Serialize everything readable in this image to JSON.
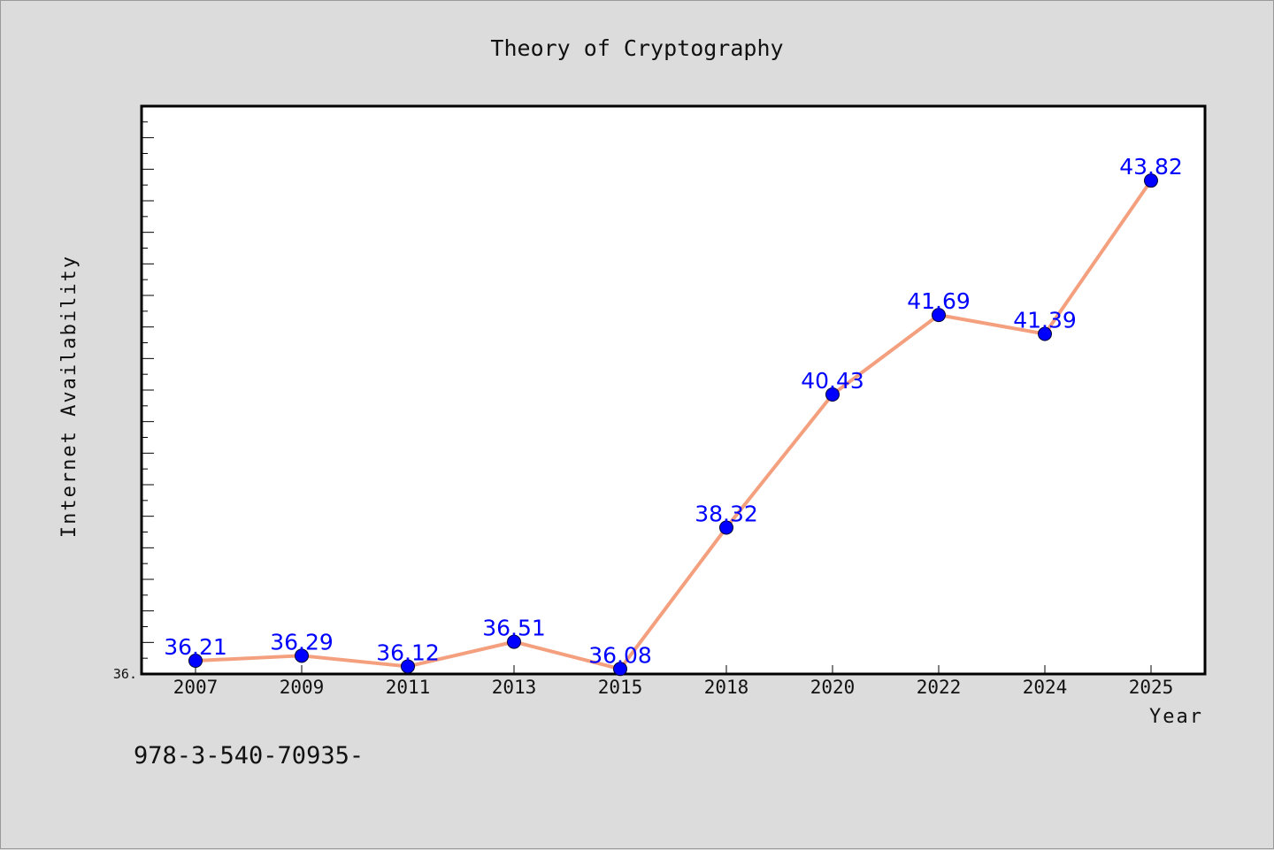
{
  "chart_data": {
    "type": "line",
    "title": "Theory of Cryptography",
    "xlabel": "Year",
    "ylabel": "Internet Availability",
    "categories": [
      "2007",
      "2009",
      "2011",
      "2013",
      "2015",
      "2018",
      "2020",
      "2022",
      "2024",
      "2025"
    ],
    "series": [
      {
        "values": [
          36.21,
          36.29,
          36.12,
          36.51,
          36.08,
          38.32,
          40.43,
          41.69,
          41.39,
          43.82
        ],
        "labels": [
          "36.21",
          "36.29",
          "36.12",
          "36.51",
          "36.08",
          "38.32",
          "40.43",
          "41.69",
          "41.39",
          "43.82"
        ]
      }
    ],
    "ylim": [
      36.0,
      45.0
    ],
    "y_min_tick_label": "36.",
    "line_color": "#f4a07e",
    "marker_color": "#0000ff",
    "label_color": "#0000ff",
    "plot_background": "#ffffff",
    "page_background": "#dcdcdc",
    "grid": false,
    "legend": "none"
  },
  "footer": {
    "isbn_text": "978-3-540-70935-"
  }
}
